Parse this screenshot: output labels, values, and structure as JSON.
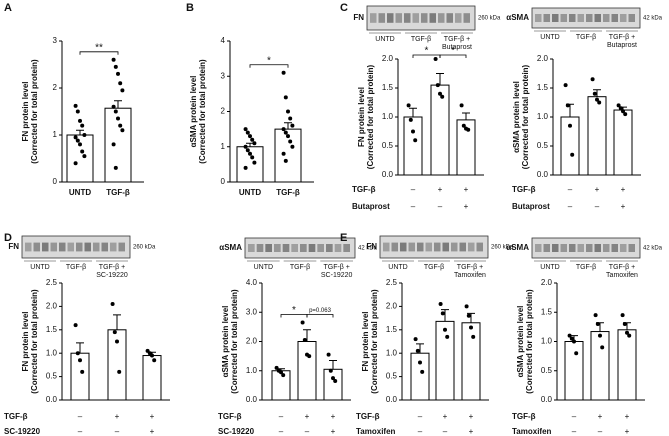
{
  "chart_data": [
    {
      "type": "bar",
      "panel": "A",
      "ylabel": [
        "FN protein level",
        "(Corrected for total protein)"
      ],
      "categories": [
        "UNTD",
        "TGF-β"
      ],
      "values": [
        1.0,
        1.57
      ],
      "errors": [
        0.1,
        0.16
      ],
      "points": [
        [
          1.62,
          1.5,
          1.3,
          1.2,
          1.0,
          0.95,
          0.88,
          0.8,
          0.65,
          0.55,
          0.4
        ],
        [
          2.6,
          2.45,
          2.3,
          2.1,
          1.95,
          1.6,
          1.5,
          1.35,
          1.2,
          1.1,
          0.8,
          0.3
        ]
      ],
      "ylim": [
        0,
        3
      ],
      "yticks": [
        0,
        1,
        2,
        3
      ],
      "significance": [
        {
          "from": 0,
          "to": 1,
          "label": "**"
        }
      ]
    },
    {
      "type": "bar",
      "panel": "B",
      "ylabel": [
        "αSMA protein level",
        "(Corrected for total protein)"
      ],
      "categories": [
        "UNTD",
        "TGF-β"
      ],
      "values": [
        1.0,
        1.5
      ],
      "errors": [
        0.1,
        0.18
      ],
      "points": [
        [
          1.5,
          1.4,
          1.3,
          1.2,
          1.1,
          1.0,
          0.9,
          0.8,
          0.7,
          0.55,
          0.4
        ],
        [
          3.1,
          2.4,
          2.0,
          1.8,
          1.6,
          1.5,
          1.4,
          1.3,
          1.15,
          1.0,
          0.8,
          0.6
        ]
      ],
      "ylim": [
        0,
        4
      ],
      "yticks": [
        0,
        1,
        2,
        3,
        4
      ],
      "significance": [
        {
          "from": 0,
          "to": 1,
          "label": "*"
        }
      ]
    },
    {
      "type": "bar",
      "panel": "C",
      "blot": {
        "protein": "FN",
        "size": "260 kDa",
        "lanes": [
          [
            "UNTD"
          ],
          [
            "TGF-β"
          ],
          [
            "TGF-β +",
            "Butaprost"
          ]
        ]
      },
      "ylabel": [
        "FN protein level",
        "(Corrected for total protein)"
      ],
      "values": [
        1.0,
        1.55,
        0.95
      ],
      "errors": [
        0.15,
        0.2,
        0.12
      ],
      "points": [
        [
          1.2,
          0.95,
          0.75,
          0.6
        ],
        [
          2.0,
          1.55,
          1.4,
          1.35
        ],
        [
          1.2,
          0.85,
          0.8,
          0.78
        ]
      ],
      "ylim": [
        0,
        2
      ],
      "yticks": [
        {
          "value": 0,
          "label": "0.0"
        },
        {
          "value": 0.5,
          "label": "0.5"
        },
        {
          "value": 1,
          "label": "1.0"
        },
        {
          "value": 1.5,
          "label": "1.5"
        },
        {
          "value": 2,
          "label": "2.0"
        }
      ],
      "significance": [
        {
          "from": 0,
          "to": 1,
          "label": "*"
        },
        {
          "from": 1,
          "to": 2,
          "label": "*"
        }
      ],
      "conditions": [
        {
          "name": "TGF-β",
          "signs": [
            "–",
            "+",
            "+"
          ]
        },
        {
          "name": "Butaprost",
          "signs": [
            "–",
            "–",
            "+"
          ]
        }
      ]
    },
    {
      "type": "bar",
      "blot": {
        "protein": "αSMA",
        "size": "42 kDa",
        "lanes": [
          [
            "UNTD"
          ],
          [
            "TGF-β"
          ],
          [
            "TGF-β +",
            "Butaprost"
          ]
        ]
      },
      "ylabel": [
        "αSMA protein level",
        "(Corrected for total protein)"
      ],
      "values": [
        1.0,
        1.35,
        1.12
      ],
      "errors": [
        0.22,
        0.12,
        0.05
      ],
      "points": [
        [
          1.55,
          1.2,
          0.85,
          0.35
        ],
        [
          1.65,
          1.4,
          1.3,
          1.25
        ],
        [
          1.2,
          1.15,
          1.1,
          1.05
        ]
      ],
      "ylim": [
        0,
        2
      ],
      "yticks": [
        {
          "value": 0,
          "label": "0.0"
        },
        {
          "value": 0.5,
          "label": "0.5"
        },
        {
          "value": 1,
          "label": "1.0"
        },
        {
          "value": 1.5,
          "label": "1.5"
        },
        {
          "value": 2,
          "label": "2.0"
        }
      ],
      "conditions": [
        {
          "name": "TGF-β",
          "signs": [
            "–",
            "+",
            "+"
          ]
        },
        {
          "name": "Butaprost",
          "signs": [
            "–",
            "–",
            "+"
          ]
        }
      ]
    },
    {
      "type": "bar",
      "panel": "D",
      "blot": {
        "protein": "FN",
        "size": "260 kDa",
        "lanes": [
          [
            "UNTD"
          ],
          [
            "TGF-β"
          ],
          [
            "TGF-β +",
            "SC-19220"
          ]
        ]
      },
      "ylabel": [
        "FN protein level",
        "(Corrected for total protein)"
      ],
      "values": [
        1.0,
        1.5,
        0.95
      ],
      "errors": [
        0.22,
        0.32,
        0.07
      ],
      "points": [
        [
          1.6,
          1.0,
          0.85,
          0.6
        ],
        [
          2.05,
          1.45,
          1.25,
          0.6
        ],
        [
          1.05,
          1.0,
          0.95,
          0.85
        ]
      ],
      "ylim": [
        0,
        2.5
      ],
      "yticks": [
        {
          "value": 0,
          "label": "0.0"
        },
        {
          "value": 0.5,
          "label": "0.5"
        },
        {
          "value": 1,
          "label": "1.0"
        },
        {
          "value": 1.5,
          "label": "1.5"
        },
        {
          "value": 2,
          "label": "2.0"
        },
        {
          "value": 2.5,
          "label": "2.5"
        }
      ],
      "conditions": [
        {
          "name": "TGF-β",
          "signs": [
            "–",
            "+",
            "+"
          ]
        },
        {
          "name": "SC-19220",
          "signs": [
            "–",
            "–",
            "+"
          ]
        }
      ]
    },
    {
      "type": "bar",
      "blot": {
        "protein": "αSMA",
        "size": "42 kDa",
        "lanes": [
          [
            "UNTD"
          ],
          [
            "TGF-β"
          ],
          [
            "TGF-β +",
            "SC-19220"
          ]
        ]
      },
      "ylabel": [
        "αSMA protein level",
        "(Corrected for total protein)"
      ],
      "values": [
        1.0,
        2.0,
        1.05
      ],
      "errors": [
        0.07,
        0.4,
        0.3
      ],
      "points": [
        [
          1.1,
          1.0,
          0.95,
          0.85
        ],
        [
          2.65,
          2.05,
          1.55,
          1.5
        ],
        [
          1.55,
          1.0,
          0.75,
          0.65
        ]
      ],
      "ylim": [
        0,
        4
      ],
      "yticks": [
        {
          "value": 0,
          "label": "0.0"
        },
        {
          "value": 1,
          "label": "1.0"
        },
        {
          "value": 2,
          "label": "2.0"
        },
        {
          "value": 3,
          "label": "3.0"
        },
        {
          "value": 4,
          "label": "4.0"
        }
      ],
      "significance": [
        {
          "from": 0,
          "to": 1,
          "label": "*"
        },
        {
          "from": 1,
          "to": 2,
          "label": "p=0.063"
        }
      ],
      "conditions": [
        {
          "name": "TGF-β",
          "signs": [
            "–",
            "+",
            "+"
          ]
        },
        {
          "name": "SC-19220",
          "signs": [
            "–",
            "–",
            "+"
          ]
        }
      ]
    },
    {
      "type": "bar",
      "panel": "E",
      "blot": {
        "protein": "FN",
        "size": "260 kDa",
        "lanes": [
          [
            "UNTD"
          ],
          [
            "TGF-β"
          ],
          [
            "TGF-β +",
            "Tamoxifen"
          ]
        ]
      },
      "ylabel": [
        "FN protein level",
        "(Corrected for total protein)"
      ],
      "values": [
        1.0,
        1.68,
        1.65
      ],
      "errors": [
        0.2,
        0.25,
        0.2
      ],
      "points": [
        [
          1.3,
          1.05,
          0.8,
          0.6
        ],
        [
          2.05,
          1.85,
          1.5,
          1.35
        ],
        [
          2.0,
          1.8,
          1.55,
          1.35
        ]
      ],
      "ylim": [
        0,
        2.5
      ],
      "yticks": [
        {
          "value": 0,
          "label": "0.0"
        },
        {
          "value": 0.5,
          "label": "0.5"
        },
        {
          "value": 1,
          "label": "1.0"
        },
        {
          "value": 1.5,
          "label": "1.5"
        },
        {
          "value": 2,
          "label": "2.0"
        },
        {
          "value": 2.5,
          "label": "2.5"
        }
      ],
      "conditions": [
        {
          "name": "TGF-β",
          "signs": [
            "–",
            "+",
            "+"
          ]
        },
        {
          "name": "Tamoxifen",
          "signs": [
            "–",
            "–",
            "+"
          ]
        }
      ]
    },
    {
      "type": "bar",
      "blot": {
        "protein": "αSMA",
        "size": "42 kDa",
        "lanes": [
          [
            "UNTD"
          ],
          [
            "TGF-β"
          ],
          [
            "TGF-β +",
            "Tamoxifen"
          ]
        ]
      },
      "ylabel": [
        "αSMA protein level",
        "(Corrected for total protein)"
      ],
      "values": [
        1.0,
        1.17,
        1.2
      ],
      "errors": [
        0.1,
        0.15,
        0.12
      ],
      "points": [
        [
          1.1,
          1.05,
          1.0,
          0.8
        ],
        [
          1.45,
          1.3,
          1.1,
          0.9
        ],
        [
          1.45,
          1.3,
          1.15,
          1.1
        ]
      ],
      "ylim": [
        0,
        2
      ],
      "yticks": [
        {
          "value": 0,
          "label": "0.0"
        },
        {
          "value": 0.5,
          "label": "0.5"
        },
        {
          "value": 1,
          "label": "1.0"
        },
        {
          "value": 1.5,
          "label": "1.5"
        },
        {
          "value": 2,
          "label": "2.0"
        }
      ],
      "conditions": [
        {
          "name": "TGF-β",
          "signs": [
            "–",
            "+",
            "+"
          ]
        },
        {
          "name": "Tamoxifen",
          "signs": [
            "–",
            "–",
            "+"
          ]
        }
      ]
    }
  ]
}
